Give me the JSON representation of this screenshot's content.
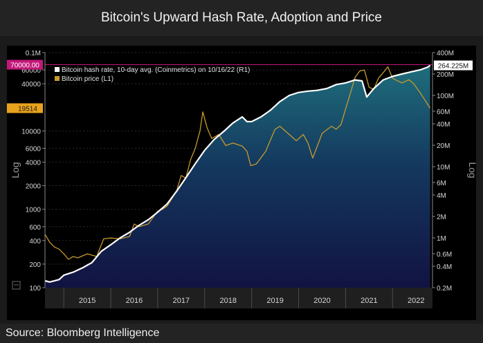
{
  "title": "Bitcoin's Upward Hash Rate, Adoption and Price",
  "source": "Source: Bloomberg Intelligence",
  "chart_data": {
    "type": "area",
    "title": "Bitcoin's Upward Hash Rate, Adoption and Price",
    "left_axis": {
      "label": "Log",
      "scale": "log",
      "ylim": [
        100,
        100000
      ],
      "ticks": [
        "0.1M",
        "60000",
        "40000",
        "10000",
        "6000",
        "4000",
        "2000",
        "1000",
        "600",
        "400",
        "200",
        "100"
      ]
    },
    "right_axis": {
      "label": "Log",
      "scale": "log",
      "ylim": [
        200000,
        400000000
      ],
      "ticks": [
        "400M",
        "200M",
        "100M",
        "60M",
        "40M",
        "20M",
        "10M",
        "6M",
        "4M",
        "2M",
        "1M",
        "0.6M",
        "0.4M",
        "0.2M"
      ]
    },
    "x_ticks": [
      "2015",
      "2016",
      "2017",
      "2018",
      "2019",
      "2020",
      "2021",
      "2022"
    ],
    "x_range": [
      2014.6,
      2022.85
    ],
    "reference_line": {
      "axis": "left",
      "value": 70000,
      "label": "70000.00",
      "color": "#c2187a"
    },
    "legend": {
      "position": "top-left"
    },
    "series": [
      {
        "name": "Bitcoin hash rate, 10-day avg. (Coinmetrics) on 10/16/22 (R1)",
        "axis": "right",
        "color": "#ffffff",
        "last_value_label": "264.225M",
        "x": [
          2014.6,
          2014.7,
          2014.9,
          2015.0,
          2015.2,
          2015.4,
          2015.6,
          2015.8,
          2016.0,
          2016.2,
          2016.4,
          2016.6,
          2016.8,
          2017.0,
          2017.2,
          2017.4,
          2017.6,
          2017.8,
          2018.0,
          2018.2,
          2018.4,
          2018.6,
          2018.8,
          2018.9,
          2019.0,
          2019.2,
          2019.4,
          2019.6,
          2019.8,
          2020.0,
          2020.2,
          2020.4,
          2020.6,
          2020.8,
          2021.0,
          2021.2,
          2021.35,
          2021.45,
          2021.6,
          2021.8,
          2022.0,
          2022.2,
          2022.4,
          2022.6,
          2022.75,
          2022.8
        ],
        "y": [
          250000,
          240000,
          260000,
          300000,
          330000,
          380000,
          450000,
          650000,
          800000,
          1000000,
          1200000,
          1500000,
          1800000,
          2300000,
          3000000,
          4500000,
          7000000,
          11000000,
          17000000,
          24000000,
          31000000,
          41000000,
          50000000,
          43000000,
          43000000,
          50000000,
          62000000,
          82000000,
          100000000,
          110000000,
          115000000,
          118000000,
          125000000,
          142000000,
          150000000,
          165000000,
          160000000,
          95000000,
          125000000,
          165000000,
          185000000,
          200000000,
          215000000,
          230000000,
          250000000,
          264225000
        ]
      },
      {
        "name": "Bitcoin price (L1)",
        "axis": "left",
        "color": "#c89a2c",
        "last_value_label": "19514",
        "x": [
          2014.6,
          2014.7,
          2014.8,
          2014.9,
          2015.0,
          2015.1,
          2015.2,
          2015.3,
          2015.5,
          2015.7,
          2015.85,
          2016.0,
          2016.2,
          2016.4,
          2016.5,
          2016.6,
          2016.8,
          2017.0,
          2017.1,
          2017.2,
          2017.4,
          2017.5,
          2017.6,
          2017.7,
          2017.8,
          2017.9,
          2017.96,
          2018.05,
          2018.15,
          2018.3,
          2018.45,
          2018.6,
          2018.8,
          2018.9,
          2018.98,
          2019.1,
          2019.3,
          2019.45,
          2019.5,
          2019.6,
          2019.8,
          2019.95,
          2020.1,
          2020.2,
          2020.3,
          2020.5,
          2020.7,
          2020.8,
          2020.9,
          2021.0,
          2021.1,
          2021.2,
          2021.3,
          2021.4,
          2021.5,
          2021.6,
          2021.7,
          2021.85,
          2021.9,
          2022.0,
          2022.2,
          2022.35,
          2022.45,
          2022.6,
          2022.8
        ],
        "y": [
          480,
          380,
          330,
          310,
          270,
          230,
          250,
          240,
          270,
          250,
          420,
          430,
          420,
          450,
          650,
          600,
          650,
          950,
          1000,
          1100,
          1700,
          2700,
          2500,
          4300,
          6000,
          10000,
          17500,
          11000,
          8000,
          9000,
          6500,
          7000,
          6400,
          5500,
          3600,
          3800,
          5500,
          9000,
          10500,
          11500,
          9000,
          7500,
          9000,
          7000,
          4500,
          9300,
          11500,
          10500,
          12000,
          19000,
          30000,
          48000,
          58000,
          60000,
          36000,
          34000,
          47000,
          60000,
          66000,
          47000,
          41000,
          45000,
          40000,
          30000,
          19514
        ]
      }
    ]
  }
}
